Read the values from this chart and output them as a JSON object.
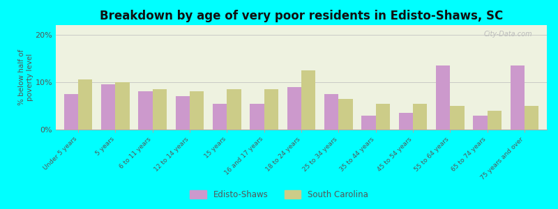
{
  "title": "Breakdown by age of very poor residents in Edisto-Shaws, SC",
  "categories": [
    "Under 5 years",
    "5 years",
    "6 to 11 years",
    "12 to 14 years",
    "15 years",
    "16 and 17 years",
    "18 to 24 years",
    "25 to 34 years",
    "35 to 44 years",
    "45 to 54 years",
    "55 to 64 years",
    "65 to 74 years",
    "75 years and over"
  ],
  "edisto_values": [
    7.5,
    9.5,
    8.0,
    7.0,
    5.5,
    5.5,
    9.0,
    7.5,
    3.0,
    3.5,
    13.5,
    3.0,
    13.5
  ],
  "sc_values": [
    10.5,
    10.0,
    8.5,
    8.0,
    8.5,
    8.5,
    12.5,
    6.5,
    5.5,
    5.5,
    5.0,
    4.0,
    5.0
  ],
  "edisto_color": "#cc99cc",
  "sc_color": "#cccc88",
  "ylim": [
    0,
    22
  ],
  "yticks": [
    0,
    10,
    20
  ],
  "ytick_labels": [
    "0%",
    "10%",
    "20%"
  ],
  "ylabel": "% below half of\npoverty level",
  "legend_edisto": "Edisto-Shaws",
  "legend_sc": "South Carolina",
  "bg_outer": "#00ffff",
  "bg_plot": "#eef2e0",
  "watermark": "City-Data.com",
  "title_fontsize": 12,
  "bar_width": 0.38
}
